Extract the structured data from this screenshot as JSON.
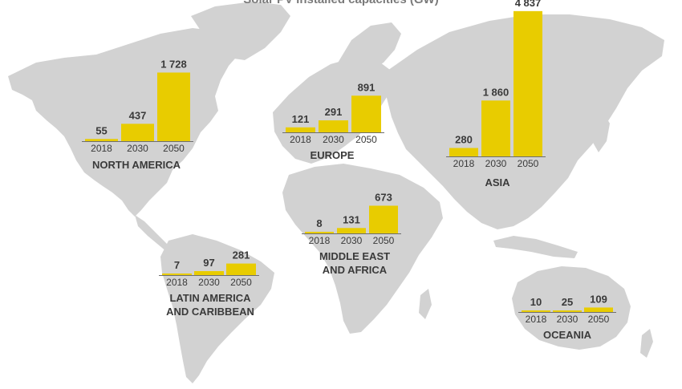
{
  "title": "Solar PV installed capacities (GW)",
  "colors": {
    "bar": "#E8CC00",
    "land": "#D2D2D2",
    "ocean": "#ffffff",
    "value_text": "#3a3a3a",
    "region_text": "#3a3a3a",
    "year_text": "#3a3a3a",
    "axis": "#6e6e6e"
  },
  "chart_data": {
    "type": "bar",
    "title": "Solar PV installed capacities (GW)",
    "unit": "GW",
    "categories": [
      "2018",
      "2030",
      "2050"
    ],
    "regions": [
      {
        "name": "NORTH AMERICA",
        "values": [
          55,
          437,
          1728
        ],
        "labels": [
          "55",
          "437",
          "1 728"
        ]
      },
      {
        "name": "EUROPE",
        "values": [
          121,
          291,
          891
        ],
        "labels": [
          "121",
          "291",
          "891"
        ]
      },
      {
        "name": "ASIA",
        "values": [
          280,
          1860,
          4837
        ],
        "labels": [
          "280",
          "1 860",
          "4 837"
        ]
      },
      {
        "name": "MIDDLE EAST AND AFRICA",
        "display_lines": [
          "MIDDLE EAST",
          "AND AFRICA"
        ],
        "values": [
          8,
          131,
          673
        ],
        "labels": [
          "8",
          "131",
          "673"
        ]
      },
      {
        "name": "LATIN AMERICA AND CARIBBEAN",
        "display_lines": [
          "LATIN AMERICA",
          "AND CARIBBEAN"
        ],
        "values": [
          7,
          97,
          281
        ],
        "labels": [
          "7",
          "97",
          "281"
        ]
      },
      {
        "name": "OCEANIA",
        "values": [
          10,
          25,
          109
        ],
        "labels": [
          "10",
          "25",
          "109"
        ]
      }
    ]
  }
}
